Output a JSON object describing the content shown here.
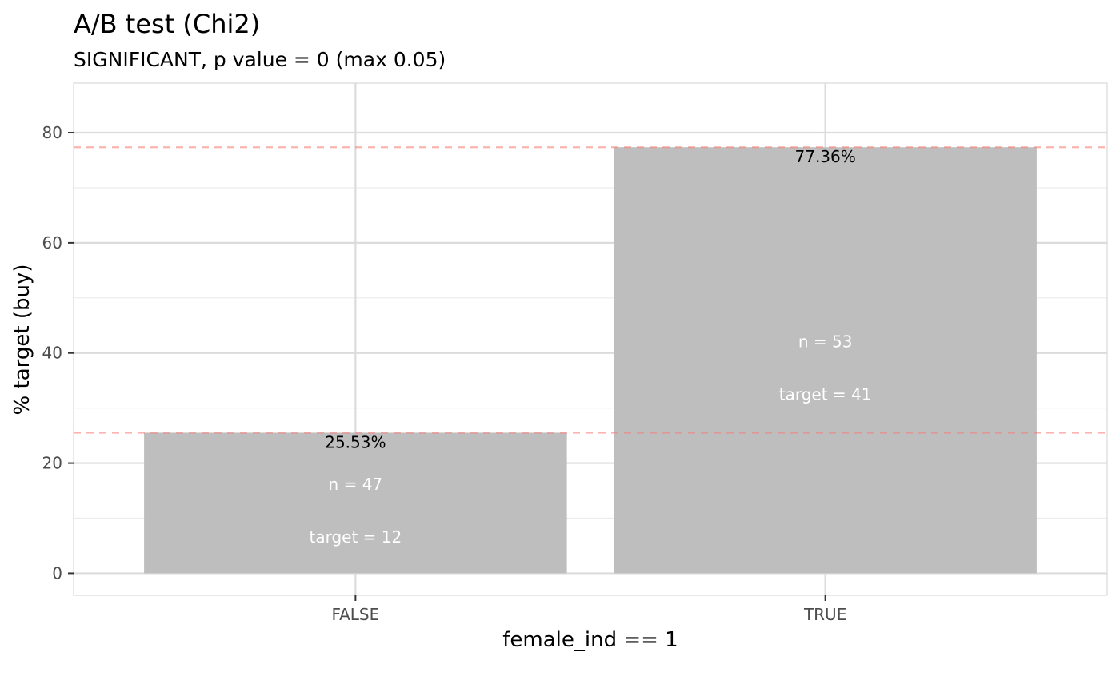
{
  "chart_data": {
    "type": "bar",
    "title": "A/B test (Chi2)",
    "subtitle": "SIGNIFICANT, p value = 0 (max 0.05)",
    "xlabel": "female_ind == 1",
    "ylabel": "% target (buy)",
    "categories": [
      "FALSE",
      "TRUE"
    ],
    "values": [
      25.53,
      77.36
    ],
    "value_labels": [
      "25.53%",
      "77.36%"
    ],
    "n_labels": [
      "n = 47",
      "n = 53"
    ],
    "target_labels": [
      "target = 12",
      "target = 41"
    ],
    "n": [
      47,
      53
    ],
    "target": [
      12,
      41
    ],
    "yticks": [
      0,
      20,
      40,
      60,
      80
    ],
    "ytick_labels": [
      "0",
      "20",
      "40",
      "60",
      "80"
    ],
    "ylim": [
      -4,
      89
    ],
    "reference_lines": [
      25.53,
      77.36
    ],
    "grid": true,
    "colors": {
      "bar": "#bebebe",
      "reference_line": "#f8766d",
      "grid_major": "#dcdcdc",
      "grid_minor": "#ebebeb",
      "panel_border": "#d9d9d9"
    }
  }
}
